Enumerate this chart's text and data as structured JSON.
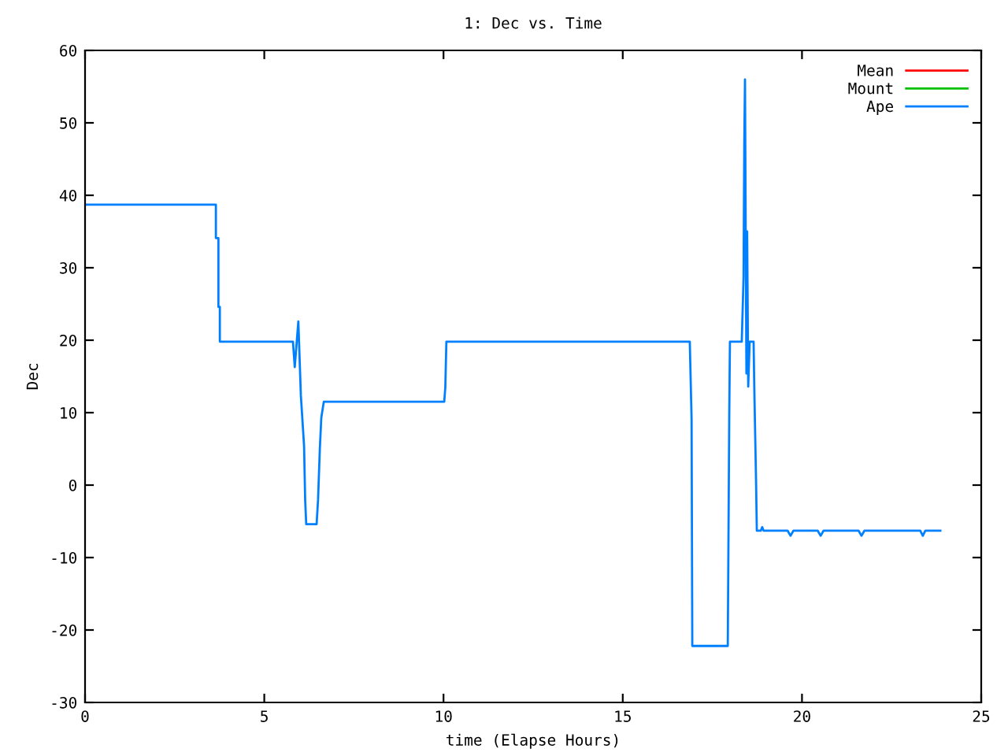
{
  "chart_data": {
    "type": "line",
    "title": "1: Dec vs. Time",
    "xlabel": "time (Elapse Hours)",
    "ylabel": "Dec",
    "xlim": [
      0,
      25
    ],
    "xticks": [
      0,
      5,
      10,
      15,
      20,
      25
    ],
    "ylim": [
      -30,
      60
    ],
    "yticks": [
      -30,
      -20,
      -10,
      0,
      10,
      20,
      30,
      40,
      50,
      60
    ],
    "grid": false,
    "legend": "top right",
    "marker": "none",
    "line_style": "solid",
    "series": [
      {
        "name": "Mean",
        "color": "#ff0000"
      },
      {
        "name": "Mount",
        "color": "#00c000"
      },
      {
        "name": "Ape",
        "color": "#0080ff",
        "x": [
          0,
          3.65,
          3.65,
          3.72,
          3.72,
          3.76,
          3.76,
          5.8,
          5.85,
          5.95,
          6.02,
          6.11,
          6.14,
          6.17,
          6.46,
          6.5,
          6.55,
          6.59,
          6.66,
          10.02,
          10.05,
          10.08,
          16.87,
          16.92,
          16.94,
          17.93,
          17.97,
          17.99,
          18.32,
          18.37,
          18.39,
          18.41,
          18.43,
          18.45,
          18.47,
          18.5,
          18.54,
          18.65,
          18.67,
          18.72,
          18.74,
          18.85,
          18.89,
          18.93,
          19.6,
          19.68,
          19.76,
          20.44,
          20.52,
          20.6,
          21.58,
          21.66,
          21.74,
          23.3,
          23.37,
          23.44,
          23.86
        ],
        "values": [
          38.7,
          38.7,
          34.1,
          34.1,
          24.6,
          24.6,
          19.8,
          19.8,
          16.3,
          22.6,
          12.4,
          5.4,
          -2,
          -5.4,
          -5.4,
          -2,
          5.0,
          9.3,
          11.5,
          11.5,
          13.5,
          19.8,
          19.8,
          9.1,
          -22.2,
          -22.2,
          9.1,
          19.8,
          19.8,
          28.7,
          47,
          56,
          35,
          15.4,
          35,
          13.6,
          19.8,
          19.8,
          13.3,
          0.2,
          -6.3,
          -6.3,
          -5.8,
          -6.3,
          -6.3,
          -7,
          -6.3,
          -6.3,
          -7,
          -6.3,
          -6.3,
          -7,
          -6.3,
          -6.3,
          -7,
          -6.3,
          -6.3
        ]
      }
    ]
  }
}
